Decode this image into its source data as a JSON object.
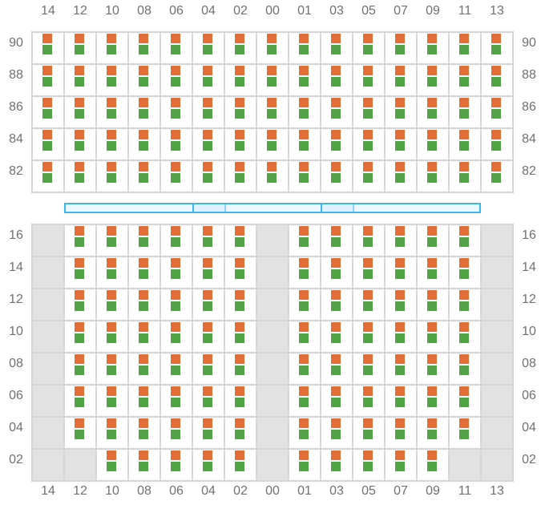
{
  "columns": [
    "14",
    "12",
    "10",
    "08",
    "06",
    "04",
    "02",
    "00",
    "01",
    "03",
    "05",
    "07",
    "09",
    "11",
    "13"
  ],
  "colors": {
    "indicator_top": "#e36e37",
    "indicator_bottom": "#52a447",
    "grid_line": "#d5d5d8",
    "unavailable": "#e2e2e4",
    "bar_border": "#3cb6ef",
    "bar_fill": "#eef6fe",
    "bar_segment": "#e1f1fc"
  },
  "top_section": {
    "rows": [
      {
        "label": "90",
        "unavailable": []
      },
      {
        "label": "88",
        "unavailable": []
      },
      {
        "label": "86",
        "unavailable": []
      },
      {
        "label": "84",
        "unavailable": []
      },
      {
        "label": "82",
        "unavailable": []
      }
    ]
  },
  "divider_bar": {
    "highlighted_columns": [
      "04",
      "03"
    ]
  },
  "bottom_section": {
    "rows": [
      {
        "label": "16",
        "unavailable": [
          "14",
          "00",
          "13"
        ]
      },
      {
        "label": "14",
        "unavailable": [
          "14",
          "00",
          "13"
        ]
      },
      {
        "label": "12",
        "unavailable": [
          "14",
          "00",
          "13"
        ]
      },
      {
        "label": "10",
        "unavailable": [
          "14",
          "00",
          "13"
        ]
      },
      {
        "label": "08",
        "unavailable": [
          "14",
          "00",
          "13"
        ]
      },
      {
        "label": "06",
        "unavailable": [
          "14",
          "00",
          "13"
        ]
      },
      {
        "label": "04",
        "unavailable": [
          "14",
          "00",
          "13"
        ]
      },
      {
        "label": "02",
        "unavailable": [
          "14",
          "12",
          "00",
          "11",
          "13"
        ]
      }
    ]
  }
}
